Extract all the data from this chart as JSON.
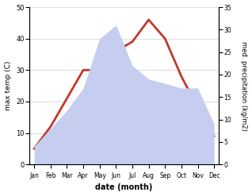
{
  "months": [
    "Jan",
    "Feb",
    "Mar",
    "Apr",
    "May",
    "Jun",
    "Jul",
    "Aug",
    "Sep",
    "Oct",
    "Nov",
    "Dec"
  ],
  "max_temp": [
    5,
    12,
    21,
    30,
    30,
    36,
    39,
    46,
    40,
    28,
    18,
    9
  ],
  "precipitation": [
    4,
    8,
    12,
    17,
    28,
    31,
    22,
    19,
    18,
    17,
    17,
    9
  ],
  "temp_color": "#c0392b",
  "precip_fill_color": "#c5cdf0",
  "xlabel": "date (month)",
  "ylabel_left": "max temp (C)",
  "ylabel_right": "med. precipitation (kg/m2)",
  "ylim_left": [
    0,
    50
  ],
  "ylim_right": [
    0,
    35
  ],
  "yticks_left": [
    0,
    10,
    20,
    30,
    40,
    50
  ],
  "yticks_right": [
    0,
    5,
    10,
    15,
    20,
    25,
    30,
    35
  ],
  "bg_color": "#ffffff",
  "line_width": 2.0
}
